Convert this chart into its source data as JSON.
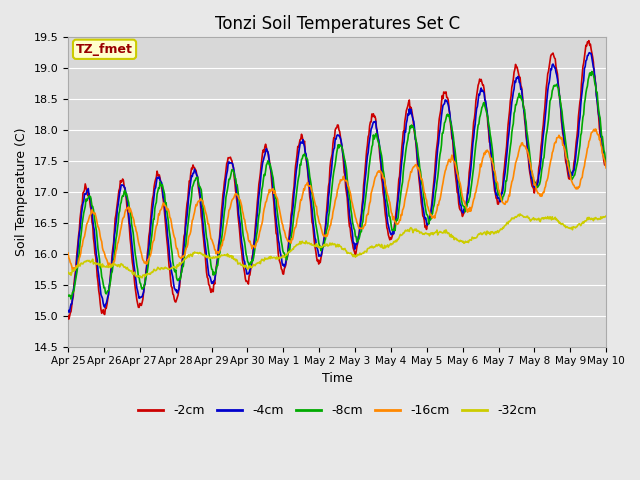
{
  "title": "Tonzi Soil Temperatures Set C",
  "xlabel": "Time",
  "ylabel": "Soil Temperature (C)",
  "ylim": [
    14.5,
    19.5
  ],
  "background_color": "#e8e8e8",
  "plot_bg_color": "#d8d8d8",
  "grid_color": "#ffffff",
  "annotation_text": "TZ_fmet",
  "annotation_bg": "#ffffcc",
  "annotation_border": "#cccc00",
  "annotation_text_color": "#990000",
  "series": {
    "-2cm": {
      "color": "#cc0000",
      "lw": 1.2
    },
    "-4cm": {
      "color": "#0000cc",
      "lw": 1.2
    },
    "-8cm": {
      "color": "#00aa00",
      "lw": 1.2
    },
    "-16cm": {
      "color": "#ff8800",
      "lw": 1.2
    },
    "-32cm": {
      "color": "#cccc00",
      "lw": 1.2
    }
  },
  "xtick_labels": [
    "Apr 25",
    "Apr 26",
    "Apr 27",
    "Apr 28",
    "Apr 29",
    "Apr 30",
    "May 1",
    "May 2",
    "May 3",
    "May 4",
    "May 5",
    "May 6",
    "May 7",
    "May 8",
    "May 9",
    "May 10"
  ],
  "ytick_vals": [
    14.5,
    15.0,
    15.5,
    16.0,
    16.5,
    17.0,
    17.5,
    18.0,
    18.5,
    19.0,
    19.5
  ]
}
